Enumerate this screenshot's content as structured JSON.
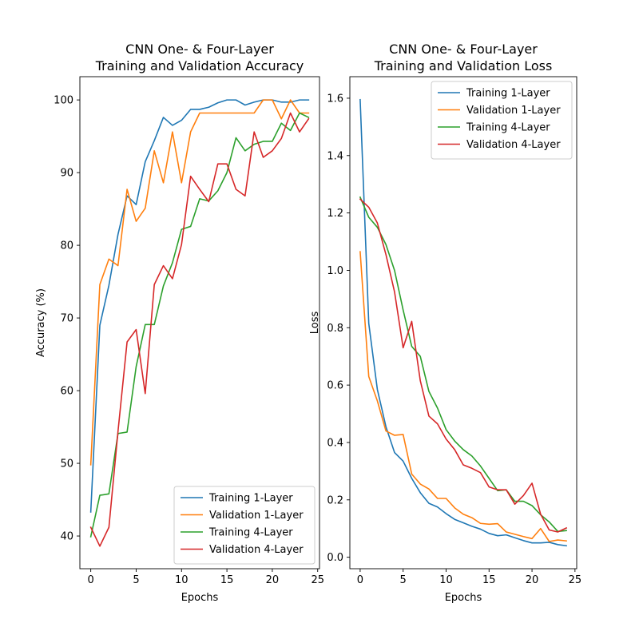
{
  "chart_data": [
    {
      "type": "line",
      "title": "CNN One- & Four-Layer\nTraining and Validation Accuracy",
      "title_lines": [
        "CNN One- & Four-Layer",
        "Training and Validation Accuracy"
      ],
      "xlabel": "Epochs",
      "ylabel": "Accuracy (%)",
      "xlim": [
        -1.2,
        25.2
      ],
      "ylim": [
        35.5,
        103.2
      ],
      "xticks": [
        0,
        5,
        10,
        15,
        20,
        25
      ],
      "yticks": [
        40,
        50,
        60,
        70,
        80,
        90,
        100
      ],
      "legend_position": "bottom-right",
      "x": [
        0,
        1,
        2,
        3,
        4,
        5,
        6,
        7,
        8,
        9,
        10,
        11,
        12,
        13,
        14,
        15,
        16,
        17,
        18,
        19,
        20,
        21,
        22,
        23,
        24
      ],
      "series": [
        {
          "name": "Training 1-Layer",
          "color": "#1f77b4",
          "values": [
            43.3,
            69.0,
            74.5,
            81.5,
            86.8,
            85.6,
            91.5,
            94.4,
            97.6,
            96.5,
            97.2,
            98.7,
            98.7,
            99.0,
            99.6,
            100,
            100,
            99.3,
            99.7,
            100,
            100,
            99.7,
            99.7,
            100,
            100
          ]
        },
        {
          "name": "Validation 1-Layer",
          "color": "#ff7f0e",
          "values": [
            49.8,
            74.6,
            78.1,
            77.2,
            87.7,
            83.3,
            85.1,
            93.0,
            88.6,
            95.6,
            88.6,
            95.6,
            98.2,
            98.2,
            98.2,
            98.2,
            98.2,
            98.2,
            98.2,
            100,
            100,
            97.4,
            100,
            98.2,
            98.2
          ]
        },
        {
          "name": "Training 4-Layer",
          "color": "#2ca02c",
          "values": [
            39.9,
            45.6,
            45.8,
            54.1,
            54.3,
            63.3,
            69.1,
            69.1,
            74.4,
            77.6,
            82.2,
            82.6,
            86.4,
            86.1,
            87.5,
            90.0,
            94.8,
            93.0,
            93.9,
            94.3,
            94.3,
            96.8,
            95.8,
            98.2,
            97.6
          ]
        },
        {
          "name": "Validation 4-Layer",
          "color": "#d62728",
          "values": [
            41.2,
            38.6,
            41.2,
            54.4,
            66.7,
            68.4,
            59.6,
            74.6,
            77.2,
            75.4,
            80.1,
            89.5,
            87.7,
            86.0,
            91.2,
            91.2,
            87.7,
            86.8,
            95.6,
            92.1,
            93.0,
            94.7,
            98.2,
            95.6,
            97.4
          ]
        }
      ]
    },
    {
      "type": "line",
      "title": "CNN One- & Four-Layer\nTraining and Validation Loss",
      "title_lines": [
        "CNN One- & Four-Layer",
        "Training and Validation Loss"
      ],
      "xlabel": "Epochs",
      "ylabel": "Loss",
      "xlim": [
        -1.2,
        25.2
      ],
      "ylim": [
        -0.04,
        1.675
      ],
      "xticks": [
        0,
        5,
        10,
        15,
        20,
        25
      ],
      "yticks": [
        0.0,
        0.2,
        0.4,
        0.6,
        0.8,
        1.0,
        1.2,
        1.4,
        1.6
      ],
      "ytick_labels": [
        "0.0",
        "0.2",
        "0.4",
        "0.6",
        "0.8",
        "1.0",
        "1.2",
        "1.4",
        "1.6"
      ],
      "legend_position": "top-right",
      "x": [
        0,
        1,
        2,
        3,
        4,
        5,
        6,
        7,
        8,
        9,
        10,
        11,
        12,
        13,
        14,
        15,
        16,
        17,
        18,
        19,
        20,
        21,
        22,
        23,
        24
      ],
      "series": [
        {
          "name": "Training 1-Layer",
          "color": "#1f77b4",
          "values": [
            1.595,
            0.815,
            0.585,
            0.455,
            0.365,
            0.335,
            0.275,
            0.225,
            0.188,
            0.175,
            0.152,
            0.132,
            0.12,
            0.108,
            0.098,
            0.083,
            0.075,
            0.078,
            0.068,
            0.058,
            0.05,
            0.05,
            0.052,
            0.044,
            0.04
          ]
        },
        {
          "name": "Validation 1-Layer",
          "color": "#ff7f0e",
          "values": [
            1.065,
            0.63,
            0.545,
            0.44,
            0.425,
            0.428,
            0.29,
            0.255,
            0.238,
            0.205,
            0.205,
            0.172,
            0.15,
            0.138,
            0.118,
            0.115,
            0.117,
            0.088,
            0.08,
            0.072,
            0.065,
            0.1,
            0.055,
            0.06,
            0.057
          ]
        },
        {
          "name": "Training 4-Layer",
          "color": "#2ca02c",
          "values": [
            1.255,
            1.185,
            1.15,
            1.09,
            1.0,
            0.862,
            0.735,
            0.7,
            0.578,
            0.52,
            0.445,
            0.405,
            0.375,
            0.353,
            0.318,
            0.275,
            0.232,
            0.235,
            0.195,
            0.195,
            0.18,
            0.148,
            0.123,
            0.09,
            0.093
          ]
        },
        {
          "name": "Validation 4-Layer",
          "color": "#d62728",
          "values": [
            1.248,
            1.22,
            1.165,
            1.055,
            0.925,
            0.73,
            0.822,
            0.615,
            0.492,
            0.465,
            0.412,
            0.375,
            0.322,
            0.31,
            0.295,
            0.245,
            0.235,
            0.235,
            0.185,
            0.215,
            0.258,
            0.15,
            0.095,
            0.088,
            0.102
          ]
        }
      ]
    }
  ]
}
